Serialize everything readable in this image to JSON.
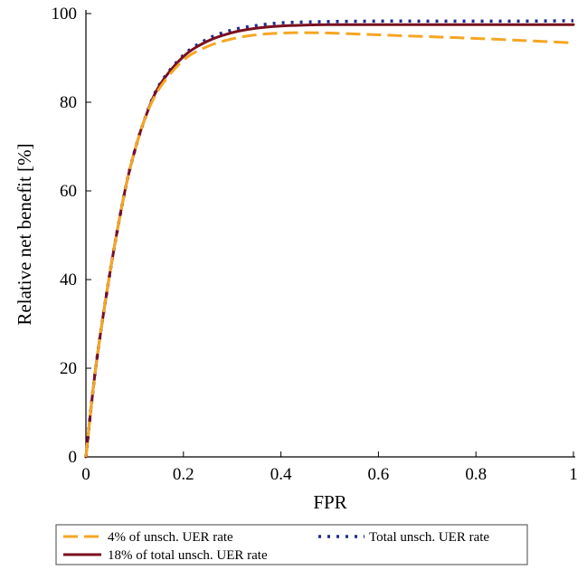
{
  "chart_data": {
    "type": "line",
    "title": "",
    "xlabel": "FPR",
    "ylabel": "Relative net benefit [%]",
    "xlim": [
      0,
      1
    ],
    "ylim": [
      0,
      100
    ],
    "xticks": [
      0,
      0.2,
      0.4,
      0.6,
      0.8,
      1
    ],
    "xtick_labels": [
      "0",
      "0.2",
      "0.4",
      "0.6",
      "0.8",
      "1"
    ],
    "yticks": [
      0,
      20,
      40,
      60,
      80,
      100
    ],
    "ytick_labels": [
      "0",
      "20",
      "40",
      "60",
      "80",
      "100"
    ],
    "grid": false,
    "legend_position": "bottom",
    "series": [
      {
        "name": "4% of unsch. UER rate",
        "color": "#f5a623",
        "style": "dashed",
        "x": [
          0,
          0.02,
          0.05,
          0.08,
          0.1,
          0.12,
          0.15,
          0.2,
          0.25,
          0.3,
          0.35,
          0.4,
          0.45,
          0.5,
          0.6,
          0.7,
          0.8,
          0.9,
          1.0
        ],
        "y": [
          0,
          20,
          42,
          60,
          69,
          76,
          83,
          89.5,
          92.6,
          94.3,
          95.2,
          95.6,
          95.7,
          95.6,
          95.2,
          94.8,
          94.4,
          93.9,
          93.4
        ]
      },
      {
        "name": "Total unsch. UER rate",
        "color": "#1f2d8a",
        "style": "dotted",
        "x": [
          0,
          0.02,
          0.05,
          0.08,
          0.1,
          0.12,
          0.15,
          0.2,
          0.25,
          0.3,
          0.35,
          0.4,
          0.45,
          0.5,
          0.6,
          0.7,
          0.8,
          0.9,
          1.0
        ],
        "y": [
          0,
          20,
          42,
          60,
          69,
          76,
          83.8,
          90.6,
          94.3,
          96.3,
          97.3,
          97.9,
          98.1,
          98.2,
          98.3,
          98.3,
          98.3,
          98.3,
          98.4
        ]
      },
      {
        "name": "18% of total unsch. UER rate",
        "color": "#7a1020",
        "style": "solid",
        "x": [
          0,
          0.02,
          0.05,
          0.08,
          0.1,
          0.12,
          0.15,
          0.2,
          0.25,
          0.3,
          0.35,
          0.4,
          0.45,
          0.5,
          0.6,
          0.7,
          0.8,
          0.9,
          1.0
        ],
        "y": [
          0,
          20,
          42,
          60,
          69,
          76,
          83.6,
          90.3,
          93.8,
          95.7,
          96.7,
          97.2,
          97.4,
          97.5,
          97.5,
          97.5,
          97.5,
          97.5,
          97.5
        ]
      }
    ]
  }
}
